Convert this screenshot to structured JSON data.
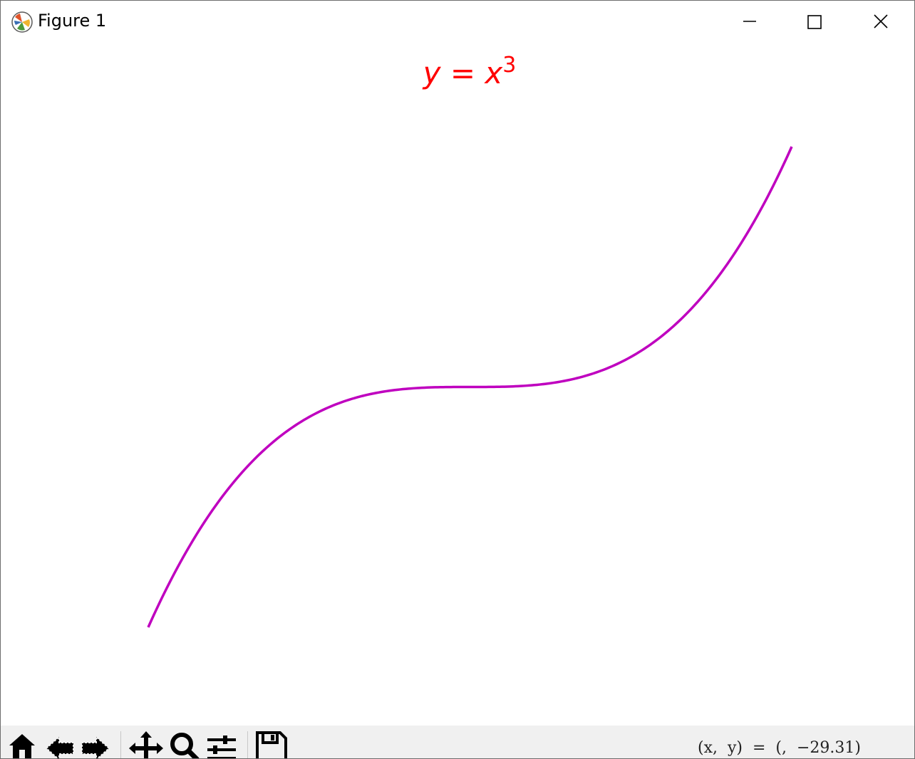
{
  "window": {
    "title": "Figure 1",
    "controls": [
      "minimize",
      "maximize",
      "close"
    ]
  },
  "toolbar": {
    "tools": [
      "home-icon",
      "back-arrow-icon",
      "forward-arrow-icon",
      "pan-icon",
      "zoom-icon",
      "subplots-icon",
      "save-icon"
    ],
    "coordinate_readout": "(x,  y)  =  (,  −29.31)"
  },
  "chart_data": {
    "type": "line",
    "title": "y = x^3",
    "title_color": "#ff0000",
    "axes_visible": false,
    "grid": false,
    "xlim": [
      -3,
      3
    ],
    "ylim": [
      -27,
      27
    ],
    "series": [
      {
        "color": "#bf00bf",
        "x": [
          -3,
          -2.5,
          -2,
          -1.5,
          -1,
          -0.5,
          0,
          0.5,
          1,
          1.5,
          2,
          2.5,
          3
        ],
        "y": [
          -27,
          -15.625,
          -8,
          -3.375,
          -1,
          -0.125,
          0,
          0.125,
          1,
          3.375,
          8,
          15.625,
          27
        ]
      }
    ]
  }
}
